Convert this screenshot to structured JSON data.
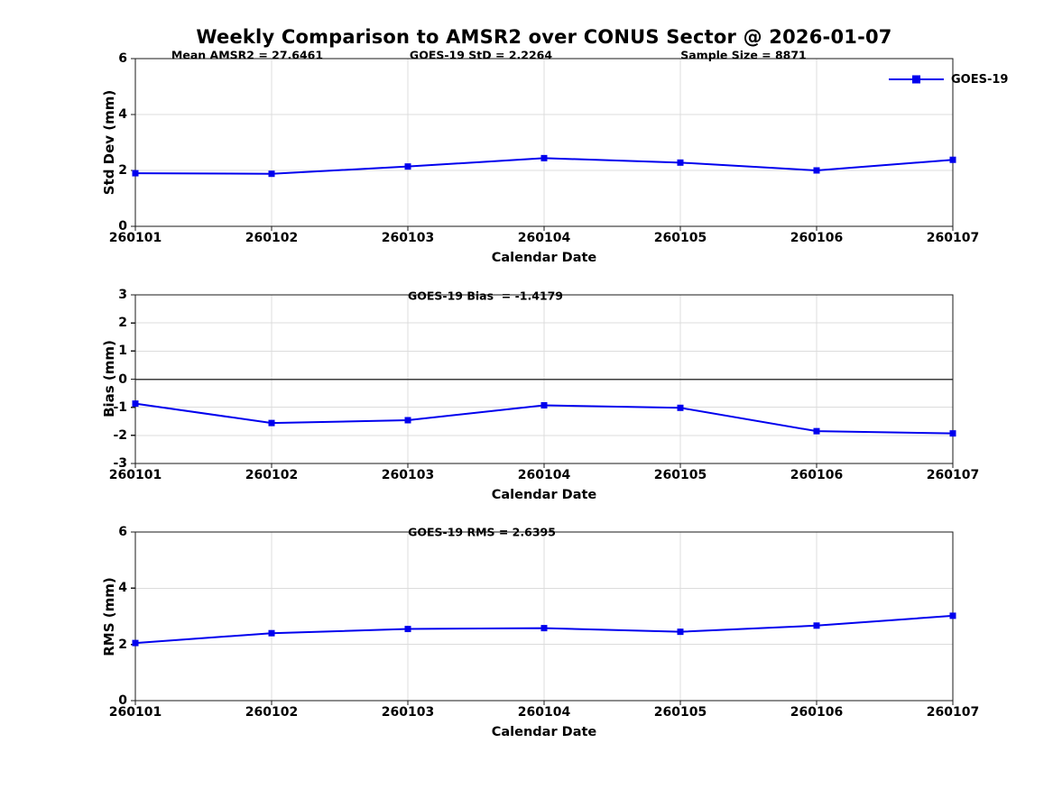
{
  "title": "Weekly Comparison to AMSR2 over CONUS Sector @ 2026-01-07",
  "legend": {
    "label": "GOES-19"
  },
  "colors": {
    "line": "#0000EE",
    "grid": "#dcdcdc",
    "axis": "#1a1a1a",
    "zero_line": "#3c3c3c",
    "background": "#ffffff",
    "text": "#000000"
  },
  "chart_data": [
    {
      "type": "line",
      "name": "std-dev-subplot",
      "ylabel": "Std Dev (mm)",
      "xlabel": "Calendar Date",
      "categories": [
        "260101",
        "260102",
        "260103",
        "260104",
        "260105",
        "260106",
        "260107"
      ],
      "series": [
        {
          "name": "GOES-19",
          "marker": "square",
          "values": [
            1.9,
            1.88,
            2.14,
            2.44,
            2.28,
            2.0,
            2.38
          ]
        }
      ],
      "ylim": [
        0,
        6
      ],
      "yticks": [
        0,
        2,
        4,
        6
      ],
      "grid": true,
      "zero_line": false,
      "legend_position": "top-right",
      "annotations": [
        "Mean AMSR2 = 27.6461",
        "GOES-19 StD = 2.2264",
        "Sample Size = 8871"
      ]
    },
    {
      "type": "line",
      "name": "bias-subplot",
      "ylabel": "Bias (mm)",
      "xlabel": "Calendar Date",
      "categories": [
        "260101",
        "260102",
        "260103",
        "260104",
        "260105",
        "260106",
        "260107"
      ],
      "series": [
        {
          "name": "GOES-19",
          "marker": "square",
          "values": [
            -0.87,
            -1.56,
            -1.46,
            -0.93,
            -1.02,
            -1.85,
            -1.93
          ]
        }
      ],
      "ylim": [
        -3,
        3
      ],
      "yticks": [
        -3,
        -2,
        -1,
        0,
        1,
        2,
        3
      ],
      "grid": true,
      "zero_line": true,
      "annotations": [
        "GOES-19 Bias  = -1.4179"
      ]
    },
    {
      "type": "line",
      "name": "rms-subplot",
      "ylabel": "RMS (mm)",
      "xlabel": "Calendar Date",
      "categories": [
        "260101",
        "260102",
        "260103",
        "260104",
        "260105",
        "260106",
        "260107"
      ],
      "series": [
        {
          "name": "GOES-19",
          "marker": "square",
          "values": [
            2.05,
            2.4,
            2.55,
            2.58,
            2.45,
            2.67,
            3.02
          ]
        }
      ],
      "ylim": [
        0,
        6
      ],
      "yticks": [
        0,
        2,
        4,
        6
      ],
      "grid": true,
      "zero_line": false,
      "annotations": [
        "GOES-19 RMS = 2.6395"
      ]
    }
  ]
}
